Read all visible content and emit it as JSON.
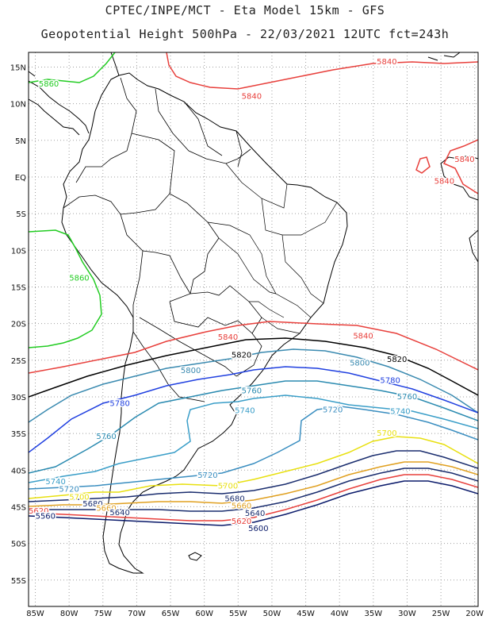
{
  "title_line1": "CPTEC/INPE/MCT -  Eta Model 15km - GFS",
  "title_line2": "Geopotential Height 500hPa - 22/03/2021 12UTC fct=243h",
  "colors": {
    "c5560": "#0a1a6a",
    "c5600": "#0a1a6a",
    "c5620": "#e8403c",
    "c5640": "#1a2d6e",
    "c5660": "#e0a020",
    "c5680": "#1a2d6e",
    "c5700": "#e8e010",
    "c5720": "#3a8ec0",
    "c5740": "#3a9ec8",
    "c5760": "#2a8ab0",
    "c5780": "#2040e0",
    "c5800": "#3a8ab0",
    "c5820": "#000000",
    "c5840": "#e8403c",
    "c5860": "#22cc22",
    "coast": "#000000",
    "grid": "#a0a0a0"
  },
  "axes": {
    "x_ticks": [
      "85W",
      "80W",
      "75W",
      "70W",
      "65W",
      "60W",
      "55W",
      "50W",
      "45W",
      "40W",
      "35W",
      "30W",
      "25W",
      "20W"
    ],
    "y_ticks": [
      "15N",
      "10N",
      "5N",
      "EQ",
      "5S",
      "10S",
      "15S",
      "20S",
      "25S",
      "30S",
      "35S",
      "40S",
      "45S",
      "50S",
      "55S"
    ]
  },
  "contour_labels": [
    {
      "text": "5840",
      "lon": -33,
      "lat": 15.8,
      "c": "c5840"
    },
    {
      "text": "5840",
      "lon": -53,
      "lat": 11.1,
      "c": "c5840"
    },
    {
      "text": "5860",
      "lon": -83,
      "lat": 12.8,
      "c": "c5860"
    },
    {
      "text": "5840",
      "lon": -21.5,
      "lat": 2.5,
      "c": "c5840"
    },
    {
      "text": "5840",
      "lon": -24.5,
      "lat": -0.5,
      "c": "c5840"
    },
    {
      "text": "5860",
      "lon": -78.5,
      "lat": -13.7,
      "c": "c5860"
    },
    {
      "text": "5840",
      "lon": -56.5,
      "lat": -21.8,
      "c": "c5840"
    },
    {
      "text": "5840",
      "lon": -36.5,
      "lat": -21.6,
      "c": "c5840"
    },
    {
      "text": "5820",
      "lon": -54.5,
      "lat": -24.2,
      "c": "c5820"
    },
    {
      "text": "5820",
      "lon": -31.5,
      "lat": -24.8,
      "c": "c5820"
    },
    {
      "text": "5800",
      "lon": -62,
      "lat": -26.3,
      "c": "c5800"
    },
    {
      "text": "5800",
      "lon": -37,
      "lat": -25.3,
      "c": "c5800"
    },
    {
      "text": "5780",
      "lon": -32.5,
      "lat": -27.7,
      "c": "c5780"
    },
    {
      "text": "5760",
      "lon": -53,
      "lat": -29.1,
      "c": "c5760"
    },
    {
      "text": "5760",
      "lon": -30,
      "lat": -29.9,
      "c": "c5760"
    },
    {
      "text": "5780",
      "lon": -72.5,
      "lat": -30.8,
      "c": "c5780"
    },
    {
      "text": "5740",
      "lon": -54,
      "lat": -31.8,
      "c": "c5740"
    },
    {
      "text": "5720",
      "lon": -41,
      "lat": -31.7,
      "c": "c5720"
    },
    {
      "text": "5740",
      "lon": -31,
      "lat": -31.9,
      "c": "c5740"
    },
    {
      "text": "5760",
      "lon": -74.5,
      "lat": -35.3,
      "c": "c5760"
    },
    {
      "text": "5700",
      "lon": -33,
      "lat": -34.9,
      "c": "c5700"
    },
    {
      "text": "5720",
      "lon": -59.5,
      "lat": -40.6,
      "c": "c5720"
    },
    {
      "text": "5740",
      "lon": -82,
      "lat": -41.5,
      "c": "c5740"
    },
    {
      "text": "5720",
      "lon": -80,
      "lat": -42.5,
      "c": "c5720"
    },
    {
      "text": "5700",
      "lon": -56.5,
      "lat": -42.1,
      "c": "c5700"
    },
    {
      "text": "5700",
      "lon": -78.5,
      "lat": -43.6,
      "c": "c5700"
    },
    {
      "text": "5680",
      "lon": -76.5,
      "lat": -44.5,
      "c": "c5680"
    },
    {
      "text": "5680",
      "lon": -55.5,
      "lat": -43.8,
      "c": "c5680"
    },
    {
      "text": "5660",
      "lon": -74.5,
      "lat": -45.1,
      "c": "c5660"
    },
    {
      "text": "5660",
      "lon": -54.5,
      "lat": -44.8,
      "c": "c5660"
    },
    {
      "text": "5620",
      "lon": -84.5,
      "lat": -45.5,
      "c": "c5620"
    },
    {
      "text": "5560",
      "lon": -83.5,
      "lat": -46.2,
      "c": "c5560"
    },
    {
      "text": "5640",
      "lon": -72.5,
      "lat": -45.7,
      "c": "c5640"
    },
    {
      "text": "5640",
      "lon": -52.5,
      "lat": -45.8,
      "c": "c5640"
    },
    {
      "text": "5620",
      "lon": -54.5,
      "lat": -46.9,
      "c": "c5620"
    },
    {
      "text": "5600",
      "lon": -52,
      "lat": -47.9,
      "c": "c5600"
    }
  ]
}
